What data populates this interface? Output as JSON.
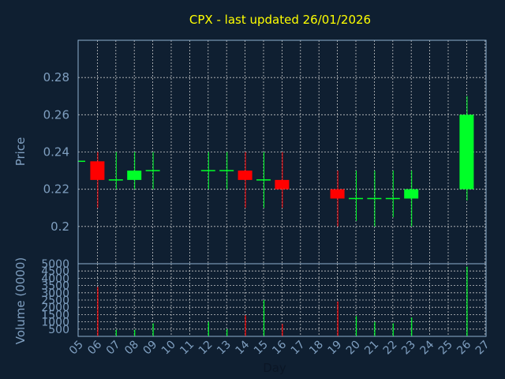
{
  "chart_data": {
    "type": "candlestick",
    "title": "CPX - last updated 26/01/2026",
    "xlabel": "Day",
    "x_ticks": [
      "05",
      "06",
      "07",
      "08",
      "09",
      "10",
      "11",
      "12",
      "13",
      "14",
      "15",
      "16",
      "17",
      "18",
      "19",
      "20",
      "21",
      "22",
      "23",
      "24",
      "25",
      "26",
      "27"
    ],
    "price": {
      "ylabel": "Price",
      "ylim": [
        0.18,
        0.3
      ],
      "y_ticks": [
        "0.2",
        "0.22",
        "0.24",
        "0.26",
        "0.28"
      ],
      "y_tick_values": [
        0.2,
        0.22,
        0.24,
        0.26,
        0.28
      ],
      "candles": [
        {
          "day": "05",
          "open": 0.235,
          "high": 0.235,
          "low": 0.235,
          "close": 0.235
        },
        {
          "day": "06",
          "open": 0.235,
          "high": 0.24,
          "low": 0.21,
          "close": 0.225
        },
        {
          "day": "07",
          "open": 0.225,
          "high": 0.24,
          "low": 0.22,
          "close": 0.225
        },
        {
          "day": "08",
          "open": 0.225,
          "high": 0.24,
          "low": 0.22,
          "close": 0.23
        },
        {
          "day": "09",
          "open": 0.23,
          "high": 0.24,
          "low": 0.22,
          "close": 0.23
        },
        {
          "day": "12",
          "open": 0.23,
          "high": 0.24,
          "low": 0.22,
          "close": 0.23
        },
        {
          "day": "13",
          "open": 0.23,
          "high": 0.24,
          "low": 0.22,
          "close": 0.23
        },
        {
          "day": "14",
          "open": 0.23,
          "high": 0.24,
          "low": 0.21,
          "close": 0.225
        },
        {
          "day": "15",
          "open": 0.225,
          "high": 0.24,
          "low": 0.21,
          "close": 0.225
        },
        {
          "day": "16",
          "open": 0.225,
          "high": 0.24,
          "low": 0.21,
          "close": 0.22
        },
        {
          "day": "19",
          "open": 0.22,
          "high": 0.23,
          "low": 0.2,
          "close": 0.215
        },
        {
          "day": "20",
          "open": 0.215,
          "high": 0.23,
          "low": 0.203,
          "close": 0.215
        },
        {
          "day": "21",
          "open": 0.215,
          "high": 0.23,
          "low": 0.2,
          "close": 0.215
        },
        {
          "day": "22",
          "open": 0.215,
          "high": 0.23,
          "low": 0.205,
          "close": 0.215
        },
        {
          "day": "23",
          "open": 0.215,
          "high": 0.23,
          "low": 0.2,
          "close": 0.22
        },
        {
          "day": "26",
          "open": 0.22,
          "high": 0.27,
          "low": 0.214,
          "close": 0.26
        }
      ]
    },
    "volume": {
      "ylabel": "Volume (0000)",
      "ylim": [
        0,
        5000
      ],
      "y_ticks": [
        "500",
        "1000",
        "1500",
        "2000",
        "2500",
        "3000",
        "3500",
        "4000",
        "4500",
        "5000"
      ],
      "y_tick_values": [
        500,
        1000,
        1500,
        2000,
        2500,
        3000,
        3500,
        4000,
        4500,
        5000
      ],
      "bars": [
        {
          "day": "05",
          "value": 0
        },
        {
          "day": "06",
          "value": 3400
        },
        {
          "day": "07",
          "value": 450
        },
        {
          "day": "08",
          "value": 450
        },
        {
          "day": "09",
          "value": 900
        },
        {
          "day": "12",
          "value": 1000
        },
        {
          "day": "13",
          "value": 500
        },
        {
          "day": "14",
          "value": 1450
        },
        {
          "day": "15",
          "value": 2500
        },
        {
          "day": "16",
          "value": 850
        },
        {
          "day": "19",
          "value": 2400
        },
        {
          "day": "20",
          "value": 1400
        },
        {
          "day": "21",
          "value": 1000
        },
        {
          "day": "22",
          "value": 900
        },
        {
          "day": "23",
          "value": 1300
        },
        {
          "day": "26",
          "value": 4800
        }
      ]
    },
    "colors": {
      "background": "#0f1f31",
      "up": "#00ff28",
      "down": "#ff0000",
      "text": "#7f9fc0",
      "title": "#ffff00"
    }
  }
}
